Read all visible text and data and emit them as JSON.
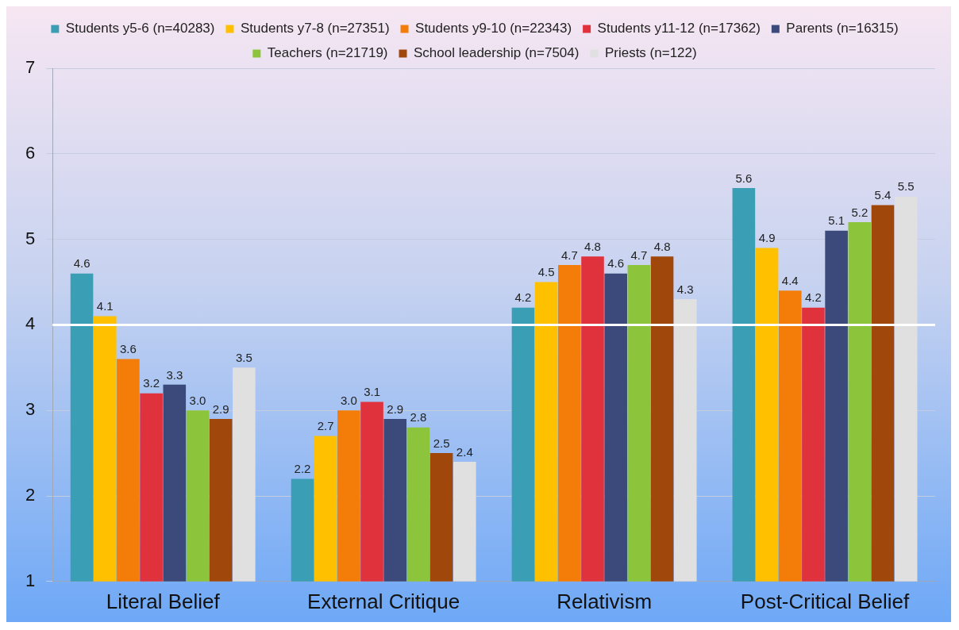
{
  "chart_data": {
    "type": "bar",
    "categories": [
      "Literal Belief",
      "External Critique",
      "Relativism",
      "Post-Critical Belief"
    ],
    "series": [
      {
        "name": "Students y5-6 (n=40283)",
        "color": "#3a9fb5",
        "values": [
          4.6,
          2.2,
          4.2,
          5.6
        ],
        "value_labels": [
          "4.6",
          "2.2",
          "4.2",
          "5.6"
        ]
      },
      {
        "name": "Students y7-8 (n=27351)",
        "color": "#ffc000",
        "values": [
          4.1,
          2.7,
          4.5,
          4.9
        ],
        "value_labels": [
          "4.1",
          "2.7",
          "4.5",
          "4.9"
        ]
      },
      {
        "name": "Students y9-10 (n=22343)",
        "color": "#f47d0a",
        "values": [
          3.6,
          3.0,
          4.7,
          4.4
        ],
        "value_labels": [
          "3.6",
          "3.0",
          "4.7",
          "4.4"
        ]
      },
      {
        "name": "Students y11-12 (n=17362)",
        "color": "#e0323c",
        "values": [
          3.2,
          3.1,
          4.8,
          4.2
        ],
        "value_labels": [
          "3.2",
          "3.1",
          "4.8",
          "4.2"
        ]
      },
      {
        "name": "Parents (n=16315)",
        "color": "#3b4a7a",
        "values": [
          3.3,
          2.9,
          4.6,
          5.1
        ],
        "value_labels": [
          "3.3",
          "2.9",
          "4.6",
          "5.1"
        ]
      },
      {
        "name": "Teachers (n=21719)",
        "color": "#8cc43c",
        "values": [
          3.0,
          2.8,
          4.7,
          5.2
        ],
        "value_labels": [
          "3.0",
          "2.8",
          "4.7",
          "5.2"
        ]
      },
      {
        "name": "School leadership (n=7504)",
        "color": "#a0470c",
        "values": [
          2.9,
          2.5,
          4.8,
          5.4
        ],
        "value_labels": [
          "2.9",
          "2.5",
          "4.8",
          "5.4"
        ]
      },
      {
        "name": "Priests (n=122)",
        "color": "#e0e0e0",
        "values": [
          3.5,
          2.4,
          4.3,
          5.5
        ],
        "value_labels": [
          "3.5",
          "2.4",
          "4.3",
          "5.5"
        ]
      }
    ],
    "ylim": [
      1,
      7
    ],
    "yticks": [
      1,
      2,
      3,
      4,
      5,
      6,
      7
    ],
    "grid": "y",
    "legend": "top",
    "ref_lines": [
      {
        "axis": "y",
        "value": 4,
        "color": "#ffffff"
      }
    ]
  }
}
